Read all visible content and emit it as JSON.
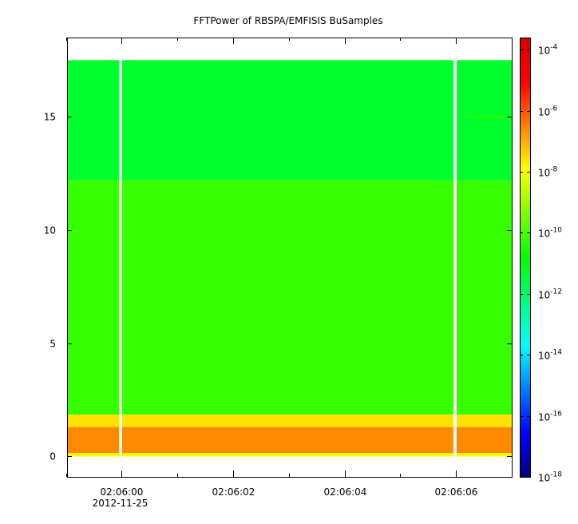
{
  "chart_data": {
    "type": "heatmap",
    "title": "FFTPower of RBSPA/EMFISIS  BuSamples",
    "xlabel": "",
    "ylabel": "",
    "x_ticks": [
      {
        "label": "02:06:00",
        "sublabel": "2012-11-25",
        "t": 0
      },
      {
        "label": "02:06:02",
        "sublabel": "",
        "t": 2
      },
      {
        "label": "02:06:04",
        "sublabel": "",
        "t": 4
      },
      {
        "label": "02:06:06",
        "sublabel": "",
        "t": 6
      }
    ],
    "x_minor_ticks": [
      -1,
      1,
      3,
      5,
      7
    ],
    "xlim": [
      -0.98,
      7.0
    ],
    "y_ticks": [
      0,
      5,
      10,
      15
    ],
    "ylim": [
      -0.9,
      18.5
    ],
    "colorbar": {
      "scale": "log",
      "range_exp": [
        -18,
        -3.6
      ],
      "tick_base": "10",
      "tick_exponents": [
        -18,
        -16,
        -14,
        -12,
        -10,
        -8,
        -6,
        -4
      ],
      "colors": [
        "#00007f",
        "#0000ff",
        "#007fff",
        "#00ffff",
        "#00ff7f",
        "#00ff00",
        "#7fff00",
        "#ffff00",
        "#ff7f00",
        "#ff0000",
        "#d80000"
      ]
    },
    "data_extent": {
      "y_max": 17.5,
      "t_min": -0.98,
      "t_max": 7.0
    },
    "gaps_t": [
      -0.02,
      5.98
    ],
    "bands": [
      {
        "y_from": 0,
        "y_to": 0.15,
        "log_power": -8.0
      },
      {
        "y_from": 0.15,
        "y_to": 1.3,
        "log_power": -6.6
      },
      {
        "y_from": 1.3,
        "y_to": 1.85,
        "log_power": -7.6
      },
      {
        "y_from": 1.85,
        "y_to": 12.2,
        "log_power": -10.2
      },
      {
        "y_from": 12.2,
        "y_to": 17.5,
        "log_power": -11.3
      }
    ],
    "lines": [
      {
        "y": 15.0,
        "t_from": 6.2,
        "t_to": 7.0,
        "log_power": -10.3
      }
    ]
  }
}
